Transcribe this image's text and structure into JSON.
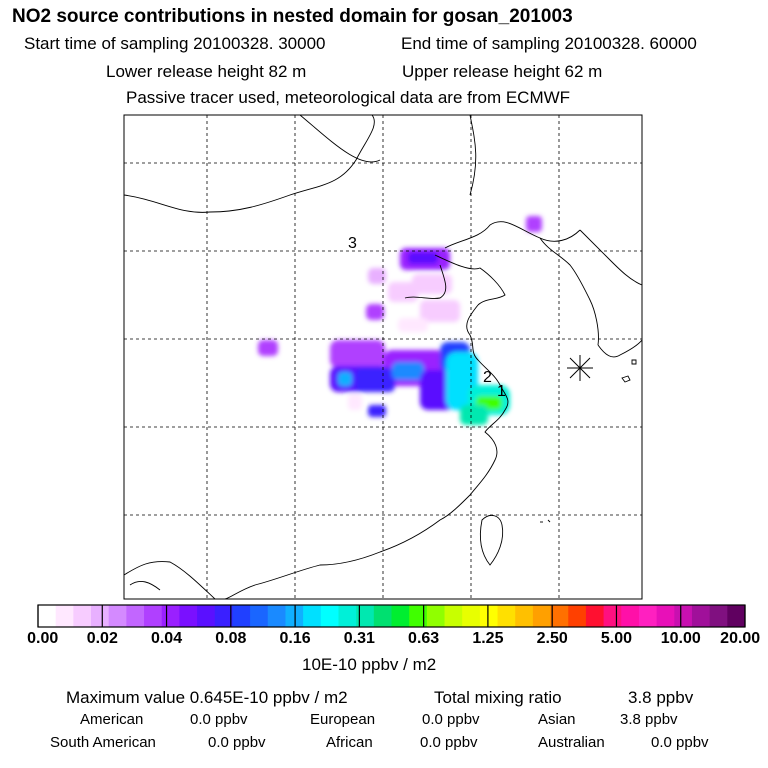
{
  "header": {
    "title": "NO2 source contributions in nested domain for gosan_201003",
    "start_label": "Start time of sampling 20100328. 30000",
    "end_label": "End time of sampling 20100328. 60000",
    "lower_label": "Lower release height   82 m",
    "upper_label": "Upper release height   62 m",
    "tracer_note": "Passive tracer used, meteorological data are from ECMWF"
  },
  "map": {
    "labels": [
      "3",
      "2",
      "1"
    ],
    "receptor_marker": "station-star-icon"
  },
  "legend": {
    "colors": [
      "#ffffff",
      "#ffe8ff",
      "#f7ccff",
      "#e8b0ff",
      "#d48aff",
      "#c266ff",
      "#b040ff",
      "#9a20ff",
      "#7a10ff",
      "#5a10ff",
      "#3a20ff",
      "#2040ff",
      "#1a66ff",
      "#1a8aff",
      "#10b0ff",
      "#00e0ff",
      "#00ffff",
      "#00f0d8",
      "#00e8b0",
      "#00e070",
      "#00ee30",
      "#40ff00",
      "#90ff00",
      "#c8ff00",
      "#e8ff00",
      "#ffff00",
      "#ffe000",
      "#ffc000",
      "#ffa000",
      "#ff7000",
      "#ff4000",
      "#ff1030",
      "#ff1080",
      "#ff10a8",
      "#ff20c0",
      "#e810b8",
      "#c810b0",
      "#a0109a",
      "#801080",
      "#600060"
    ],
    "tick_labels": [
      "0.00",
      "0.02",
      "0.04",
      "0.08",
      "0.16",
      "0.31",
      "0.63",
      "1.25",
      "2.50",
      "5.00",
      "10.00",
      "20.00"
    ],
    "unit_label": "10E-10 ppbv / m2"
  },
  "summary": {
    "max_label": "Maximum value  0.645E-10 ppbv / m2",
    "total_label": "Total mixing ratio",
    "total_value": "3.8 ppbv",
    "rows": [
      {
        "name": "American",
        "value": "0.0 ppbv"
      },
      {
        "name": "European",
        "value": "0.0 ppbv"
      },
      {
        "name": "Asian",
        "value": "3.8 ppbv"
      },
      {
        "name": "South American",
        "value": "0.0 ppbv"
      },
      {
        "name": "African",
        "value": "0.0 ppbv"
      },
      {
        "name": "Australian",
        "value": "0.0 ppbv"
      }
    ]
  }
}
